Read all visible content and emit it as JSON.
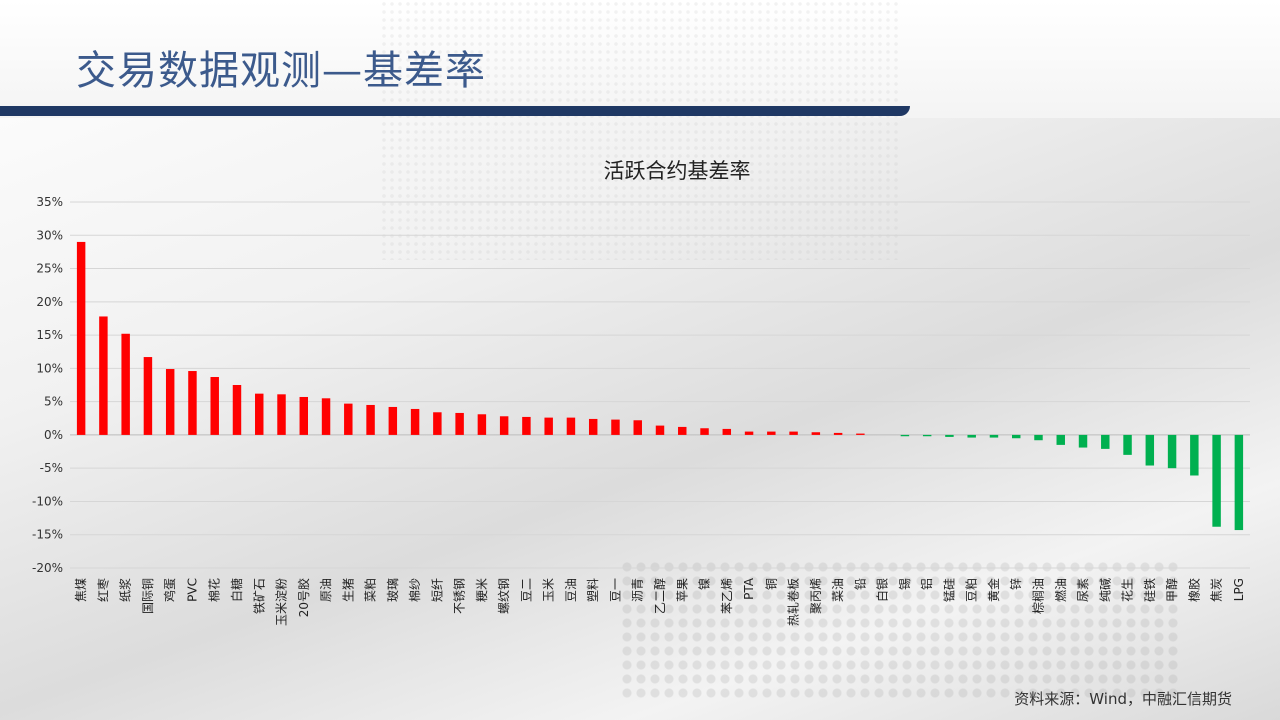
{
  "slide": {
    "title": "交易数据观测—基差率",
    "source": "资料来源：Wind，中融汇信期货"
  },
  "colors": {
    "positive": "#ff0000",
    "negative": "#00b050",
    "title_bar": "#1f3864",
    "title_text": "#3c5a8c"
  },
  "chart_data": {
    "type": "bar",
    "title": "活跃合约基差率",
    "xlabel": "",
    "ylabel": "",
    "ylim": [
      -0.2,
      0.35
    ],
    "yticks": [
      0.35,
      0.3,
      0.25,
      0.2,
      0.15,
      0.1,
      0.05,
      0.0,
      -0.05,
      -0.1,
      -0.15,
      -0.2
    ],
    "ytick_labels": [
      "35%",
      "30%",
      "25%",
      "20%",
      "15%",
      "10%",
      "5%",
      "0%",
      "-5%",
      "-10%",
      "-15%",
      "-20%"
    ],
    "grid": true,
    "categories": [
      "焦煤",
      "红枣",
      "纸浆",
      "国际铜",
      "鸡蛋",
      "PVC",
      "棉花",
      "白糖",
      "铁矿石",
      "玉米淀粉",
      "20号胶",
      "原油",
      "生猪",
      "菜粕",
      "玻璃",
      "棉纱",
      "短纤",
      "不锈钢",
      "粳米",
      "螺纹钢",
      "豆二",
      "玉米",
      "豆油",
      "塑料",
      "豆一",
      "沥青",
      "乙二醇",
      "苹果",
      "镍",
      "苯乙烯",
      "PTA",
      "铜",
      "热轧卷板",
      "聚丙烯",
      "菜油",
      "铅",
      "白银",
      "锡",
      "铝",
      "锰硅",
      "豆粕",
      "黄金",
      "锌",
      "棕榈油",
      "燃油",
      "尿素",
      "纯碱",
      "花生",
      "硅铁",
      "甲醇",
      "橡胶",
      "焦炭",
      "LPG"
    ],
    "values": [
      0.29,
      0.178,
      0.152,
      0.117,
      0.099,
      0.096,
      0.087,
      0.075,
      0.062,
      0.061,
      0.057,
      0.055,
      0.047,
      0.045,
      0.042,
      0.039,
      0.034,
      0.033,
      0.031,
      0.028,
      0.027,
      0.026,
      0.026,
      0.024,
      0.023,
      0.022,
      0.014,
      0.012,
      0.01,
      0.009,
      0.005,
      0.005,
      0.005,
      0.004,
      0.003,
      0.002,
      0.0,
      -0.002,
      -0.002,
      -0.003,
      -0.004,
      -0.004,
      -0.005,
      -0.008,
      -0.015,
      -0.019,
      -0.021,
      -0.03,
      -0.046,
      -0.05,
      -0.061,
      -0.138,
      -0.143
    ]
  }
}
